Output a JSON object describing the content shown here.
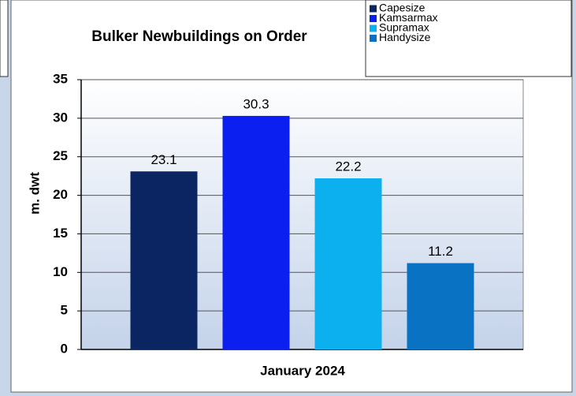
{
  "chart_data": {
    "type": "bar",
    "title": "Bulker Newbuildings on Order",
    "x_label": "January 2024",
    "y_label": "m. dwt",
    "categories": [
      "January 2024"
    ],
    "series": [
      {
        "name": "Capesize",
        "color": "#0b2462",
        "values": [
          23.1
        ]
      },
      {
        "name": "Kamsarmax",
        "color": "#0b1ff0",
        "values": [
          30.3
        ]
      },
      {
        "name": "Supramax",
        "color": "#0cb0ef",
        "values": [
          22.2
        ]
      },
      {
        "name": "Handysize",
        "color": "#0a72c2",
        "values": [
          11.2
        ]
      }
    ],
    "ylim": [
      0,
      35
    ],
    "yticks": [
      0,
      5,
      10,
      15,
      20,
      25,
      30,
      35
    ],
    "grid": true,
    "legend": "upper right"
  }
}
